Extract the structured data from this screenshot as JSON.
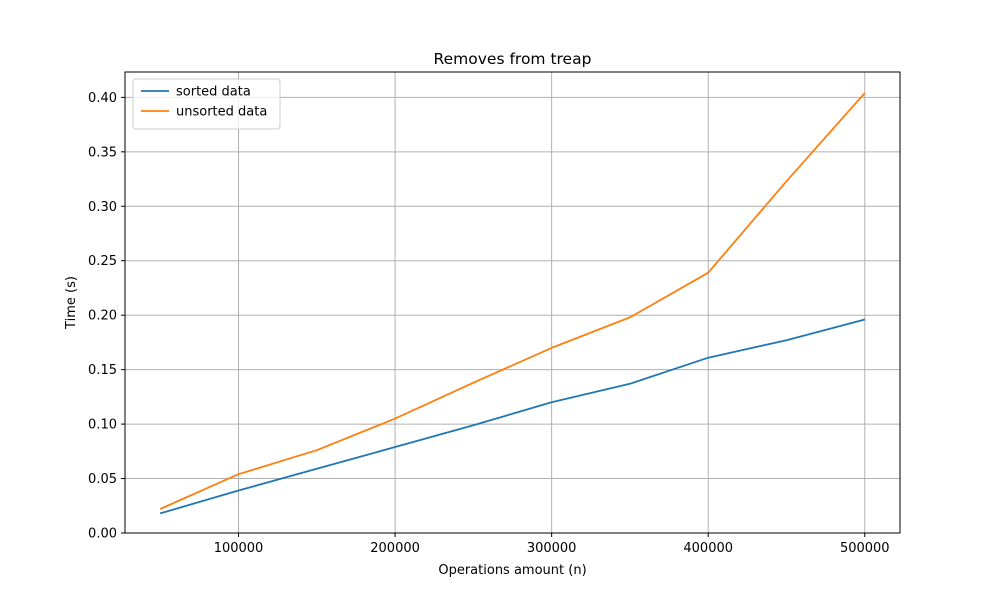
{
  "chart_data": {
    "type": "line",
    "title": "Removes from treap",
    "xlabel": "Operations amount (n)",
    "ylabel": "Time (s)",
    "x": [
      50000,
      100000,
      150000,
      200000,
      250000,
      300000,
      350000,
      400000,
      450000,
      500000
    ],
    "series": [
      {
        "name": "sorted data",
        "color": "#1f77b4",
        "values": [
          0.018,
          0.039,
          0.059,
          0.079,
          0.099,
          0.12,
          0.137,
          0.161,
          0.177,
          0.196
        ]
      },
      {
        "name": "unsorted data",
        "color": "#ff7f0e",
        "values": [
          0.022,
          0.054,
          0.076,
          0.105,
          0.138,
          0.17,
          0.198,
          0.239,
          0.323,
          0.404
        ]
      }
    ],
    "xlim": [
      27500,
      522500
    ],
    "ylim": [
      0,
      0.4233
    ],
    "xticks": [
      100000,
      200000,
      300000,
      400000,
      500000
    ],
    "yticks": [
      0.0,
      0.05,
      0.1,
      0.15,
      0.2,
      0.25,
      0.3,
      0.35,
      0.4
    ],
    "xtick_labels": [
      "100000",
      "200000",
      "300000",
      "400000",
      "500000"
    ],
    "ytick_labels": [
      "0.00",
      "0.05",
      "0.10",
      "0.15",
      "0.20",
      "0.25",
      "0.30",
      "0.35",
      "0.40"
    ],
    "grid": true,
    "legend_position": "upper-left"
  }
}
